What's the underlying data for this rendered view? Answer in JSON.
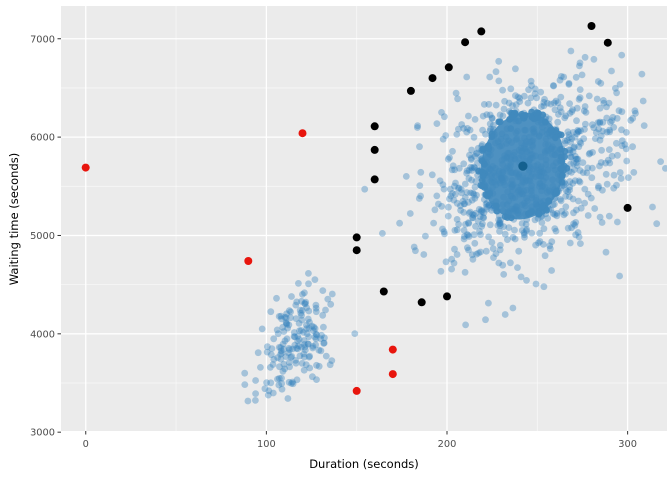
{
  "figure": {
    "background": "#ffffff",
    "panel_bg": "#ebebeb",
    "grid_major_color": "#ffffff",
    "grid_minor_color": "#ffffff",
    "tick_mark_color": "#333333",
    "tick_label_color": "#4d4d4d",
    "axis_title_color": "#000000"
  },
  "chart_data": {
    "type": "scatter",
    "title": "",
    "xlabel": "Duration (seconds)",
    "ylabel": "Waiting time (seconds)",
    "xlim": [
      -13.7,
      321.8
    ],
    "ylim": [
      3012,
      7333
    ],
    "x_major_ticks": [
      0,
      100,
      200,
      300
    ],
    "y_major_ticks": [
      3000,
      4000,
      5000,
      6000,
      7000
    ],
    "x_minor_ticks": [
      50,
      150,
      250
    ],
    "y_minor_ticks": [
      3500,
      4500,
      5500,
      6500
    ],
    "grid": "on",
    "legend": "none",
    "series": [
      {
        "name": "short-eruptions-cluster",
        "kind": "gaussian_cluster",
        "n": 175,
        "seed": 9,
        "mean": [
          116,
          3950
        ],
        "sd": [
          11,
          300
        ],
        "rho": 0.4,
        "color": "#3182bd",
        "alpha": 0.38,
        "radius": 3.4
      },
      {
        "name": "long-eruptions-cluster",
        "kind": "gaussian_cluster",
        "n": 860,
        "seed": 42,
        "mean": [
          243,
          5660
        ],
        "sd": [
          27,
          470
        ],
        "rho": 0.3,
        "color": "#3182bd",
        "alpha": 0.38,
        "radius": 3.4
      },
      {
        "name": "dense-core-region",
        "kind": "blob",
        "center": [
          242,
          5705
        ],
        "rx": 23,
        "ry": 545,
        "rotate_deg": 9,
        "edge_dots": 80,
        "seed": 3,
        "color": "#4089bd",
        "alpha": 0.92,
        "radius": 3.4
      },
      {
        "name": "cluster-center-point",
        "kind": "points",
        "points": [
          [
            242,
            5705
          ]
        ],
        "color": "#14608f",
        "alpha": 1,
        "radius": 4.6
      },
      {
        "name": "boundary-outliers-black",
        "kind": "points",
        "points": [
          [
            150,
            4850
          ],
          [
            150,
            4980
          ],
          [
            160,
            5570
          ],
          [
            160,
            5870
          ],
          [
            160,
            6110
          ],
          [
            180,
            6470
          ],
          [
            192,
            6600
          ],
          [
            201,
            6710
          ],
          [
            210,
            6965
          ],
          [
            219,
            7075
          ],
          [
            280,
            7130
          ],
          [
            289,
            6960
          ],
          [
            300,
            5280
          ],
          [
            200,
            4380
          ],
          [
            186,
            4320
          ],
          [
            165,
            4430
          ]
        ],
        "color": "#000000",
        "alpha": 1,
        "radius": 4.0
      },
      {
        "name": "flagged-outliers-red",
        "kind": "points",
        "points": [
          [
            0,
            5690
          ],
          [
            120,
            6040
          ],
          [
            90,
            4740
          ],
          [
            170,
            3840
          ],
          [
            170,
            3590
          ],
          [
            150,
            3420
          ]
        ],
        "color": "#e8150d",
        "alpha": 1,
        "radius": 4.0
      }
    ]
  }
}
